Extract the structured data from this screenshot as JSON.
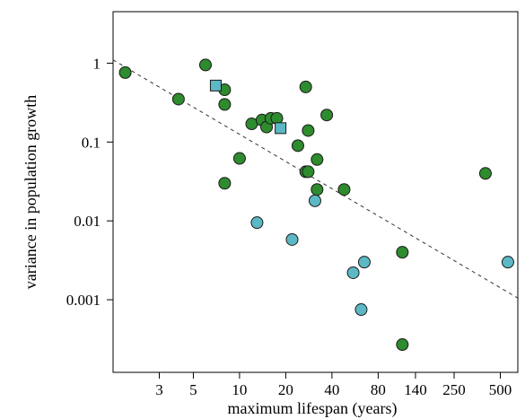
{
  "chart_data": {
    "type": "scatter",
    "title": "",
    "xlabel": "maximum lifespan (years)",
    "ylabel": "variance in population growth",
    "xscale": "log",
    "yscale": "log",
    "xlim": [
      1.5,
      650
    ],
    "ylim": [
      0.00012,
      4.5
    ],
    "xticks": [
      3,
      5,
      10,
      20,
      40,
      80,
      140,
      250,
      500
    ],
    "xtick_labels": [
      "3",
      "5",
      "10",
      "20",
      "40",
      "80",
      "140",
      "250",
      "500"
    ],
    "yticks": [
      1,
      0.1,
      0.01,
      0.001
    ],
    "ytick_labels": [
      "1",
      "0.1",
      "0.01",
      "0.001"
    ],
    "grid": false,
    "legend": "none",
    "trend_line": {
      "style": "dashed",
      "points": [
        [
          1.5,
          1.1
        ],
        [
          650,
          0.00105
        ]
      ]
    },
    "series": [
      {
        "marker": "circle",
        "color": "#2e8b2e",
        "points": [
          [
            1.8,
            0.76
          ],
          [
            4,
            0.35
          ],
          [
            6,
            0.95
          ],
          [
            8,
            0.46
          ],
          [
            8,
            0.3
          ],
          [
            8,
            0.03
          ],
          [
            10,
            0.062
          ],
          [
            12,
            0.17
          ],
          [
            14,
            0.19
          ],
          [
            15,
            0.155
          ],
          [
            16,
            0.2
          ],
          [
            17.5,
            0.2
          ],
          [
            24,
            0.09
          ],
          [
            27,
            0.5
          ],
          [
            27,
            0.042
          ],
          [
            28,
            0.14
          ],
          [
            28,
            0.042
          ],
          [
            32,
            0.06
          ],
          [
            32,
            0.025
          ],
          [
            37,
            0.22
          ],
          [
            48,
            0.025
          ],
          [
            115,
            0.004
          ],
          [
            115,
            0.00027
          ],
          [
            400,
            0.04
          ]
        ]
      },
      {
        "marker": "circle",
        "color": "#5cb8c4",
        "points": [
          [
            13,
            0.0095
          ],
          [
            22,
            0.0058
          ],
          [
            31,
            0.018
          ],
          [
            55,
            0.0022
          ],
          [
            62,
            0.00075
          ],
          [
            65,
            0.003
          ],
          [
            560,
            0.003
          ]
        ]
      },
      {
        "marker": "square",
        "color": "#5cb8c4",
        "points": [
          [
            7,
            0.52
          ],
          [
            18.5,
            0.15
          ]
        ]
      }
    ]
  }
}
